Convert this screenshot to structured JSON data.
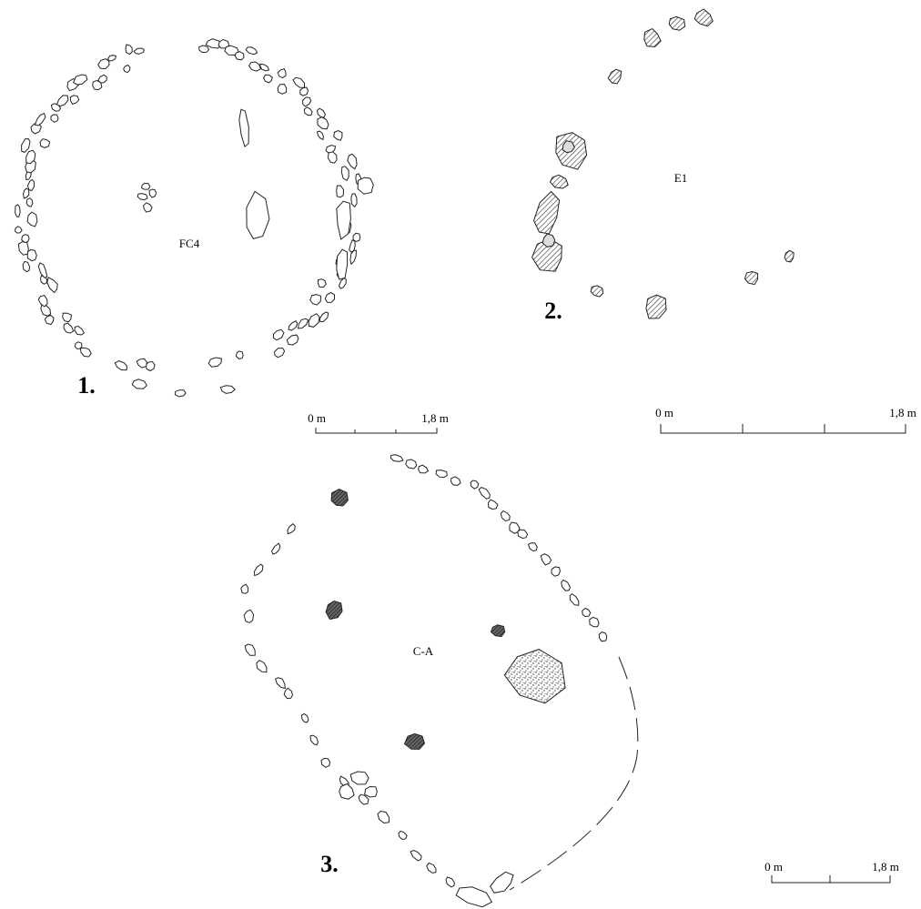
{
  "figures": [
    {
      "number": "1.",
      "label": "FC4",
      "scale": {
        "start": "0 m",
        "end": "1,8 m"
      }
    },
    {
      "number": "2.",
      "label": "E1",
      "scale": {
        "start": "0 m",
        "end": "1,8 m"
      }
    },
    {
      "number": "3.",
      "label": "C-A",
      "scale": {
        "start": "0 m",
        "end": "1,8 m"
      }
    }
  ]
}
